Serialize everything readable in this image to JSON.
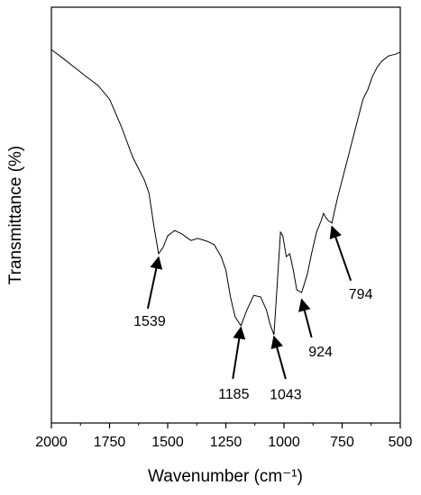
{
  "chart_data": {
    "type": "line",
    "xlabel": "Wavenumber (cm⁻¹)",
    "ylabel": "Transmittance (%)",
    "x": [
      2000,
      1950,
      1900,
      1850,
      1800,
      1750,
      1700,
      1650,
      1600,
      1580,
      1560,
      1539,
      1520,
      1500,
      1470,
      1440,
      1400,
      1370,
      1330,
      1300,
      1270,
      1250,
      1230,
      1210,
      1185,
      1160,
      1130,
      1100,
      1075,
      1060,
      1043,
      1030,
      1015,
      1005,
      990,
      975,
      960,
      945,
      924,
      900,
      880,
      860,
      840,
      830,
      820,
      810,
      794,
      770,
      750,
      720,
      700,
      680,
      660,
      640,
      620,
      600,
      580,
      550,
      520,
      500
    ],
    "series": [
      {
        "name": "Transmittance",
        "color": "#000000",
        "values": [
          89.8,
          87.7,
          85.5,
          83.3,
          81.2,
          77.9,
          71.4,
          63.9,
          58.4,
          55.2,
          47.6,
          40.7,
          42.2,
          45.0,
          46.3,
          45.5,
          43.9,
          44.4,
          43.7,
          42.9,
          40.0,
          36.8,
          30.3,
          25.5,
          23.4,
          27.1,
          30.7,
          30.3,
          27.1,
          23.8,
          21.2,
          32.5,
          45.9,
          45.0,
          40.0,
          40.7,
          36.8,
          32.0,
          31.4,
          35.7,
          41.1,
          45.9,
          48.7,
          50.4,
          49.4,
          48.7,
          48.1,
          54.1,
          58.4,
          64.9,
          69.3,
          73.6,
          77.9,
          80.1,
          83.3,
          85.5,
          87.0,
          88.3,
          88.7,
          89.2
        ]
      }
    ],
    "xlim": [
      2000,
      500
    ],
    "ylim": [
      0,
      100
    ],
    "xticks": [
      2000,
      1750,
      1500,
      1250,
      1000,
      750,
      500
    ],
    "xminorticks": [
      1875,
      1625,
      1375,
      1125,
      875,
      625
    ],
    "annotations": [
      1539,
      1185,
      1043,
      924,
      794
    ]
  }
}
